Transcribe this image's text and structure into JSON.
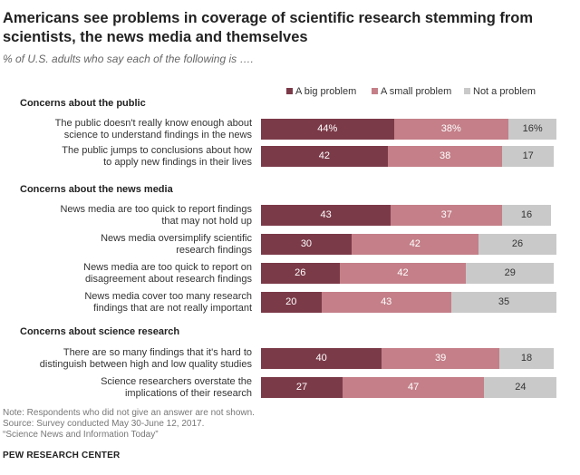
{
  "header": {
    "title": "Americans see problems in coverage of scientific research stemming from scientists, the news media and themselves",
    "subtitle": "% of U.S. adults who say each of the following is …."
  },
  "legend": {
    "items": [
      {
        "label": "A big problem",
        "color": "#7b3a48"
      },
      {
        "label": "A small problem",
        "color": "#c47f88"
      },
      {
        "label": "Not a problem",
        "color": "#c9c9c9"
      }
    ]
  },
  "chart_data": {
    "type": "bar",
    "orientation": "horizontal-stacked",
    "groups": [
      {
        "label": "Concerns about the public",
        "rows": [
          {
            "label": "The public doesn't really know enough about science to understand findings in the news",
            "label_lines": [
              "The public doesn't really know enough about",
              "science to understand findings in the news"
            ],
            "values": [
              44,
              38,
              16
            ],
            "display": [
              "44%",
              "38%",
              "16%"
            ]
          },
          {
            "label": "The public jumps to conclusions about how to apply new findings in their lives",
            "label_lines": [
              "The public jumps to conclusions about how",
              "to apply new findings in their lives"
            ],
            "values": [
              42,
              38,
              17
            ],
            "display": [
              "42",
              "38",
              "17"
            ]
          }
        ]
      },
      {
        "label": "Concerns about the news media",
        "rows": [
          {
            "label": "News media are too quick to report findings that may not hold up",
            "label_lines": [
              "News media are too quick to report findings",
              "that may not hold up"
            ],
            "values": [
              43,
              37,
              16
            ],
            "display": [
              "43",
              "37",
              "16"
            ]
          },
          {
            "label": "News media oversimplify scientific research findings",
            "label_lines": [
              "News media oversimplify scientific",
              "research findings"
            ],
            "values": [
              30,
              42,
              26
            ],
            "display": [
              "30",
              "42",
              "26"
            ]
          },
          {
            "label": "News media are too quick to report on disagreement about research findings",
            "label_lines": [
              "News media are too quick to report on",
              "disagreement about research findings"
            ],
            "values": [
              26,
              42,
              29
            ],
            "display": [
              "26",
              "42",
              "29"
            ]
          },
          {
            "label": "News media cover too many research findings that are not really important",
            "label_lines": [
              "News media cover too many research",
              "findings that are not really important"
            ],
            "values": [
              20,
              43,
              35
            ],
            "display": [
              "20",
              "43",
              "35"
            ]
          }
        ]
      },
      {
        "label": "Concerns about science research",
        "rows": [
          {
            "label": "There are so many findings that it's hard to distinguish between high and low quality studies",
            "label_lines": [
              "There are so many findings that it's hard to",
              "distinguish between high and low quality studies"
            ],
            "values": [
              40,
              39,
              18
            ],
            "display": [
              "40",
              "39",
              "18"
            ]
          },
          {
            "label": "Science researchers overstate the implications of their research",
            "label_lines": [
              "Science researchers overstate the",
              "implications of their research"
            ],
            "values": [
              27,
              47,
              24
            ],
            "display": [
              "27",
              "47",
              "24"
            ]
          }
        ]
      }
    ],
    "series": [
      "A big problem",
      "A small problem",
      "Not a problem"
    ],
    "colors": [
      "#7b3a48",
      "#c47f88",
      "#c9c9c9"
    ],
    "xlim": [
      0,
      100
    ],
    "grid": false,
    "legend_position": "top-right"
  },
  "footer": {
    "note": "Note: Respondents who did not give an answer are not shown.",
    "source": "Source: Survey conducted May 30-June 12, 2017.",
    "report": "“Science News and Information Today”",
    "org": "PEW RESEARCH CENTER"
  }
}
